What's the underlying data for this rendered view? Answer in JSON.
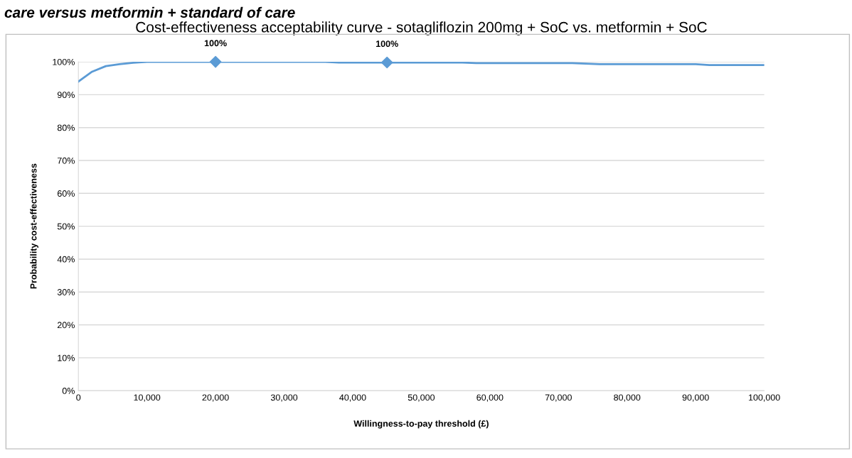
{
  "chart_data": {
    "type": "line",
    "title": "Cost-effectiveness acceptability curve - sotagliflozin 200mg + SoC vs. metformin + SoC",
    "xlabel": "Willingness-to-pay threshold (£)",
    "ylabel": "Probability cost-effectiveness",
    "annotations": [
      "care versus metformin + standard of care"
    ],
    "series": [
      {
        "color": "#5b9bd5",
        "marker": "none",
        "x": [
          0,
          2000,
          4000,
          6000,
          8000,
          10000,
          20000,
          36000,
          38000,
          45000,
          56000,
          58000,
          72000,
          76000,
          90000,
          92000,
          100000
        ],
        "values": [
          94.0,
          97.0,
          98.7,
          99.3,
          99.7,
          100,
          100,
          100,
          99.8,
          99.8,
          99.8,
          99.6,
          99.6,
          99.3,
          99.3,
          99.0,
          99.0
        ]
      },
      {
        "type": "scatter",
        "color": "#5b9bd5",
        "marker": "diamond",
        "x": [
          20000,
          45000
        ],
        "values": [
          100,
          99.8
        ],
        "value_labels": [
          "100%",
          "100%"
        ]
      }
    ],
    "xlim": [
      0,
      100000
    ],
    "xticks": [
      {
        "value": 0,
        "label": "0"
      },
      {
        "value": 10000,
        "label": "10,000"
      },
      {
        "value": 20000,
        "label": "20,000"
      },
      {
        "value": 30000,
        "label": "30,000"
      },
      {
        "value": 40000,
        "label": "40,000"
      },
      {
        "value": 50000,
        "label": "50,000"
      },
      {
        "value": 60000,
        "label": "60,000"
      },
      {
        "value": 70000,
        "label": "70,000"
      },
      {
        "value": 80000,
        "label": "80,000"
      },
      {
        "value": 90000,
        "label": "90,000"
      },
      {
        "value": 100000,
        "label": "100,000"
      }
    ],
    "ylim": [
      0,
      100
    ],
    "yticks": [
      {
        "value": 0,
        "label": "0%"
      },
      {
        "value": 10,
        "label": "10%"
      },
      {
        "value": 20,
        "label": "20%"
      },
      {
        "value": 30,
        "label": "30%"
      },
      {
        "value": 40,
        "label": "40%"
      },
      {
        "value": 50,
        "label": "50%"
      },
      {
        "value": 60,
        "label": "60%"
      },
      {
        "value": 70,
        "label": "70%"
      },
      {
        "value": 80,
        "label": "80%"
      },
      {
        "value": 90,
        "label": "90%"
      },
      {
        "value": 100,
        "label": "100%"
      }
    ],
    "grid": "y"
  }
}
